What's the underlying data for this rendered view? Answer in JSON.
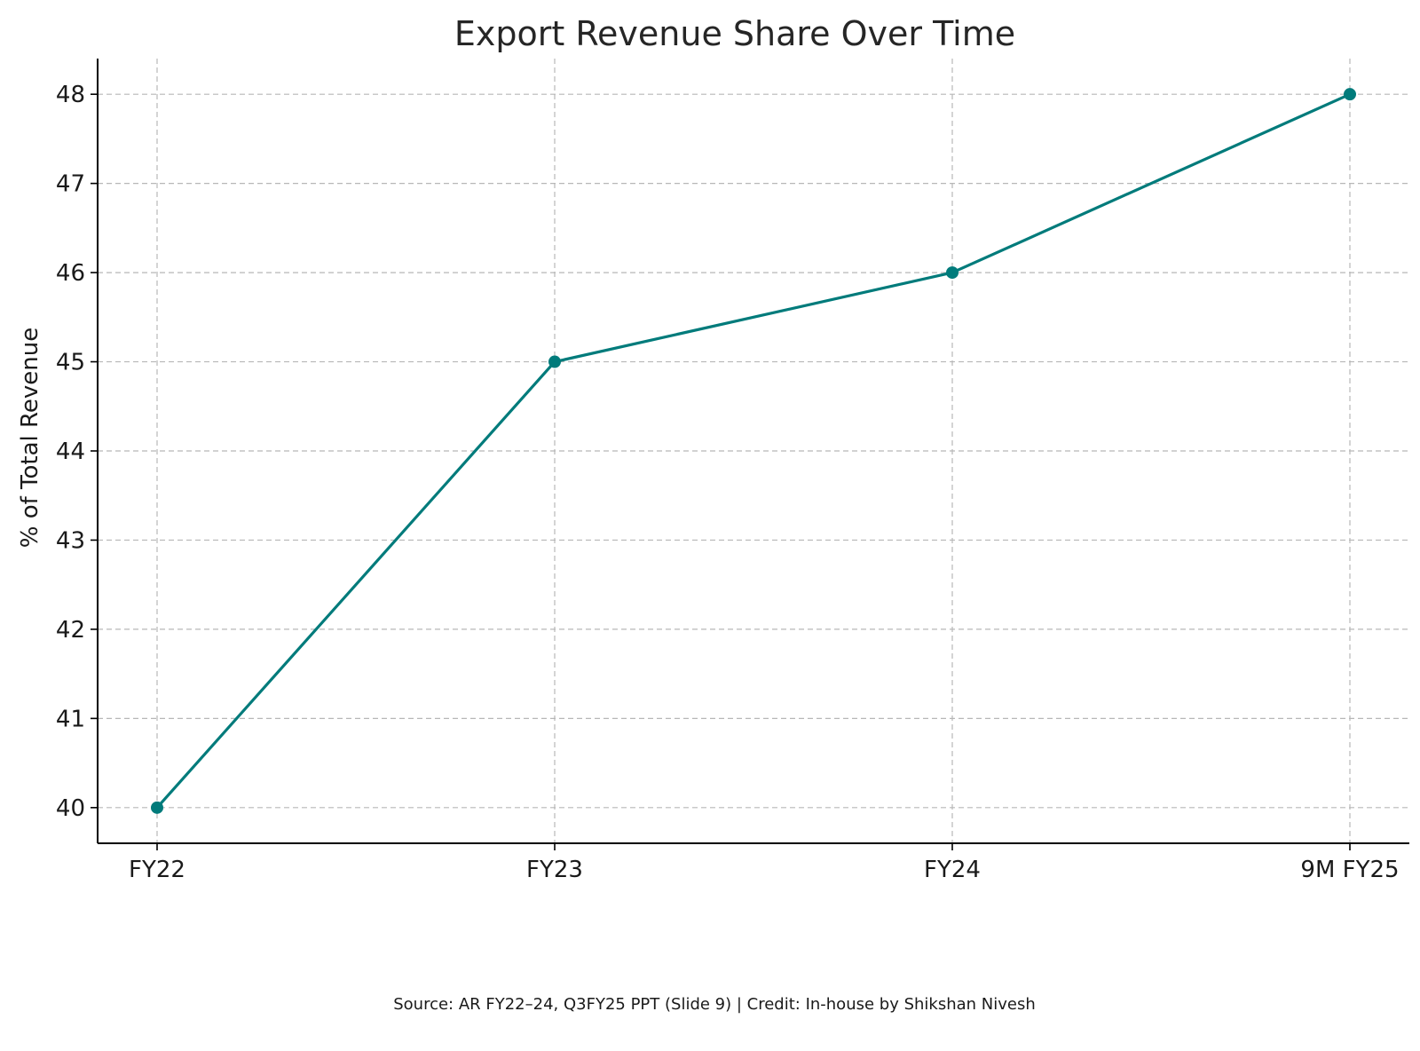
{
  "chart_data": {
    "type": "line",
    "title": "Export Revenue Share Over Time",
    "xlabel": "",
    "ylabel": "% of Total Revenue",
    "categories": [
      "FY22",
      "FY23",
      "FY24",
      "9M FY25"
    ],
    "series": [
      {
        "values": [
          40,
          45,
          46,
          48
        ],
        "color": "#007b7b"
      }
    ],
    "ylim": [
      39.6,
      48.4
    ],
    "yticks": [
      40,
      41,
      42,
      43,
      44,
      45,
      46,
      47,
      48
    ],
    "grid": true,
    "markers": true,
    "legend": false
  },
  "footer": {
    "source_note": "Source: AR FY22–24, Q3FY25 PPT (Slide 9) | Credit: In-house by Shikshan Nivesh"
  }
}
